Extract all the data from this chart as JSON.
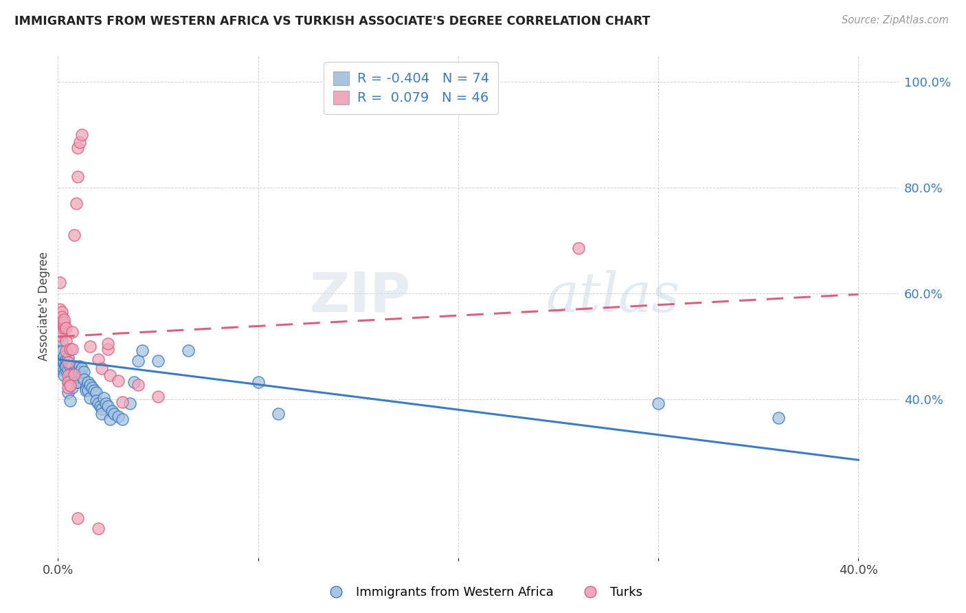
{
  "title": "IMMIGRANTS FROM WESTERN AFRICA VS TURKISH ASSOCIATE'S DEGREE CORRELATION CHART",
  "source": "Source: ZipAtlas.com",
  "ylabel": "Associate's Degree",
  "right_yticks": [
    "100.0%",
    "80.0%",
    "60.0%",
    "40.0%"
  ],
  "right_ytick_vals": [
    1.0,
    0.8,
    0.6,
    0.4
  ],
  "watermark_zip": "ZIP",
  "watermark_atlas": "atlas",
  "blue_color": "#a8c4e0",
  "pink_color": "#f0a8bc",
  "line_blue": "#3a7cc4",
  "line_pink": "#d96080",
  "blue_scatter": [
    [
      0.001,
      0.49
    ],
    [
      0.001,
      0.48
    ],
    [
      0.001,
      0.47
    ],
    [
      0.001,
      0.5
    ],
    [
      0.002,
      0.51
    ],
    [
      0.002,
      0.49
    ],
    [
      0.002,
      0.46
    ],
    [
      0.002,
      0.455
    ],
    [
      0.003,
      0.48
    ],
    [
      0.003,
      0.47
    ],
    [
      0.003,
      0.455
    ],
    [
      0.003,
      0.445
    ],
    [
      0.004,
      0.465
    ],
    [
      0.004,
      0.455
    ],
    [
      0.004,
      0.475
    ],
    [
      0.004,
      0.462
    ],
    [
      0.005,
      0.478
    ],
    [
      0.005,
      0.456
    ],
    [
      0.005,
      0.432
    ],
    [
      0.005,
      0.412
    ],
    [
      0.006,
      0.397
    ],
    [
      0.006,
      0.432
    ],
    [
      0.006,
      0.462
    ],
    [
      0.006,
      0.447
    ],
    [
      0.007,
      0.442
    ],
    [
      0.007,
      0.422
    ],
    [
      0.007,
      0.462
    ],
    [
      0.008,
      0.44
    ],
    [
      0.008,
      0.452
    ],
    [
      0.008,
      0.437
    ],
    [
      0.009,
      0.462
    ],
    [
      0.009,
      0.45
    ],
    [
      0.009,
      0.432
    ],
    [
      0.01,
      0.447
    ],
    [
      0.01,
      0.442
    ],
    [
      0.01,
      0.432
    ],
    [
      0.011,
      0.462
    ],
    [
      0.011,
      0.452
    ],
    [
      0.012,
      0.458
    ],
    [
      0.012,
      0.442
    ],
    [
      0.013,
      0.452
    ],
    [
      0.013,
      0.437
    ],
    [
      0.014,
      0.422
    ],
    [
      0.014,
      0.417
    ],
    [
      0.015,
      0.432
    ],
    [
      0.015,
      0.417
    ],
    [
      0.016,
      0.427
    ],
    [
      0.016,
      0.402
    ],
    [
      0.017,
      0.422
    ],
    [
      0.018,
      0.417
    ],
    [
      0.019,
      0.412
    ],
    [
      0.019,
      0.397
    ],
    [
      0.02,
      0.392
    ],
    [
      0.021,
      0.387
    ],
    [
      0.022,
      0.382
    ],
    [
      0.022,
      0.372
    ],
    [
      0.023,
      0.402
    ],
    [
      0.024,
      0.392
    ],
    [
      0.025,
      0.387
    ],
    [
      0.026,
      0.362
    ],
    [
      0.027,
      0.377
    ],
    [
      0.028,
      0.372
    ],
    [
      0.03,
      0.367
    ],
    [
      0.032,
      0.362
    ],
    [
      0.036,
      0.392
    ],
    [
      0.038,
      0.432
    ],
    [
      0.04,
      0.472
    ],
    [
      0.042,
      0.492
    ],
    [
      0.05,
      0.472
    ],
    [
      0.065,
      0.492
    ],
    [
      0.1,
      0.432
    ],
    [
      0.11,
      0.372
    ],
    [
      0.3,
      0.392
    ],
    [
      0.36,
      0.365
    ]
  ],
  "pink_scatter": [
    [
      0.001,
      0.62
    ],
    [
      0.001,
      0.57
    ],
    [
      0.001,
      0.55
    ],
    [
      0.001,
      0.54
    ],
    [
      0.001,
      0.53
    ],
    [
      0.001,
      0.52
    ],
    [
      0.002,
      0.565
    ],
    [
      0.002,
      0.555
    ],
    [
      0.002,
      0.545
    ],
    [
      0.002,
      0.535
    ],
    [
      0.002,
      0.527
    ],
    [
      0.003,
      0.535
    ],
    [
      0.003,
      0.54
    ],
    [
      0.003,
      0.545
    ],
    [
      0.003,
      0.55
    ],
    [
      0.004,
      0.535
    ],
    [
      0.004,
      0.51
    ],
    [
      0.004,
      0.49
    ],
    [
      0.005,
      0.47
    ],
    [
      0.005,
      0.445
    ],
    [
      0.005,
      0.432
    ],
    [
      0.005,
      0.422
    ],
    [
      0.006,
      0.495
    ],
    [
      0.006,
      0.425
    ],
    [
      0.007,
      0.495
    ],
    [
      0.007,
      0.527
    ],
    [
      0.008,
      0.447
    ],
    [
      0.008,
      0.71
    ],
    [
      0.009,
      0.77
    ],
    [
      0.01,
      0.82
    ],
    [
      0.01,
      0.875
    ],
    [
      0.011,
      0.885
    ],
    [
      0.012,
      0.9
    ],
    [
      0.016,
      0.5
    ],
    [
      0.02,
      0.475
    ],
    [
      0.022,
      0.458
    ],
    [
      0.025,
      0.495
    ],
    [
      0.025,
      0.505
    ],
    [
      0.026,
      0.445
    ],
    [
      0.03,
      0.435
    ],
    [
      0.032,
      0.395
    ],
    [
      0.04,
      0.427
    ],
    [
      0.05,
      0.405
    ],
    [
      0.26,
      0.685
    ],
    [
      0.02,
      0.155
    ],
    [
      0.01,
      0.175
    ]
  ],
  "xlim": [
    0.0,
    0.42
  ],
  "ylim": [
    0.1,
    1.05
  ],
  "blue_line_x": [
    0.0,
    0.4
  ],
  "blue_line_y": [
    0.475,
    0.285
  ],
  "pink_line_x": [
    0.0,
    0.4
  ],
  "pink_line_y": [
    0.518,
    0.598
  ],
  "xticks": [
    0.0,
    0.1,
    0.2,
    0.3,
    0.4
  ],
  "xtick_labels": [
    "0.0%",
    "",
    "",
    "",
    "40.0%"
  ]
}
